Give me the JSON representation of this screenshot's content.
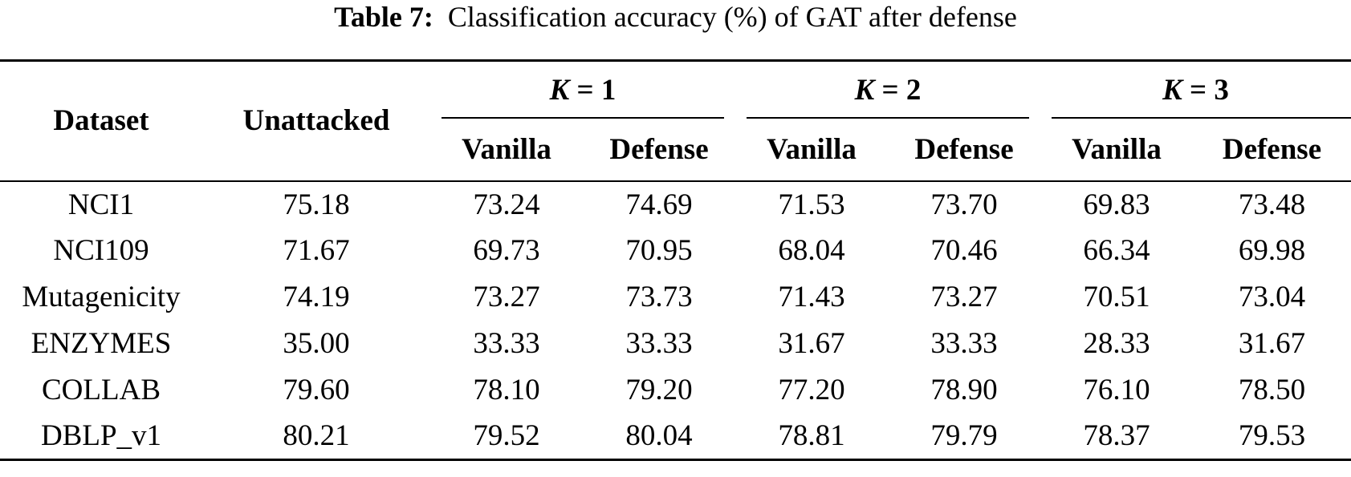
{
  "caption": {
    "label": "Table 7:",
    "text": "Classification accuracy (%) of GAT after defense"
  },
  "table": {
    "headers": {
      "dataset": "Dataset",
      "unattacked": "Unattacked",
      "k_groups": [
        {
          "var": "K",
          "eq": " = 1"
        },
        {
          "var": "K",
          "eq": " = 2"
        },
        {
          "var": "K",
          "eq": " = 3"
        }
      ],
      "sub": [
        "Vanilla",
        "Defense",
        "Vanilla",
        "Defense",
        "Vanilla",
        "Defense"
      ]
    },
    "rows": [
      [
        "NCI1",
        "75.18",
        "73.24",
        "74.69",
        "71.53",
        "73.70",
        "69.83",
        "73.48"
      ],
      [
        "NCI109",
        "71.67",
        "69.73",
        "70.95",
        "68.04",
        "70.46",
        "66.34",
        "69.98"
      ],
      [
        "Mutagenicity",
        "74.19",
        "73.27",
        "73.73",
        "71.43",
        "73.27",
        "70.51",
        "73.04"
      ],
      [
        "ENZYMES",
        "35.00",
        "33.33",
        "33.33",
        "31.67",
        "33.33",
        "28.33",
        "31.67"
      ],
      [
        "COLLAB",
        "79.60",
        "78.10",
        "79.20",
        "77.20",
        "78.90",
        "76.10",
        "78.50"
      ],
      [
        "DBLP_v1",
        "80.21",
        "79.52",
        "80.04",
        "78.81",
        "79.79",
        "78.37",
        "79.53"
      ]
    ]
  }
}
